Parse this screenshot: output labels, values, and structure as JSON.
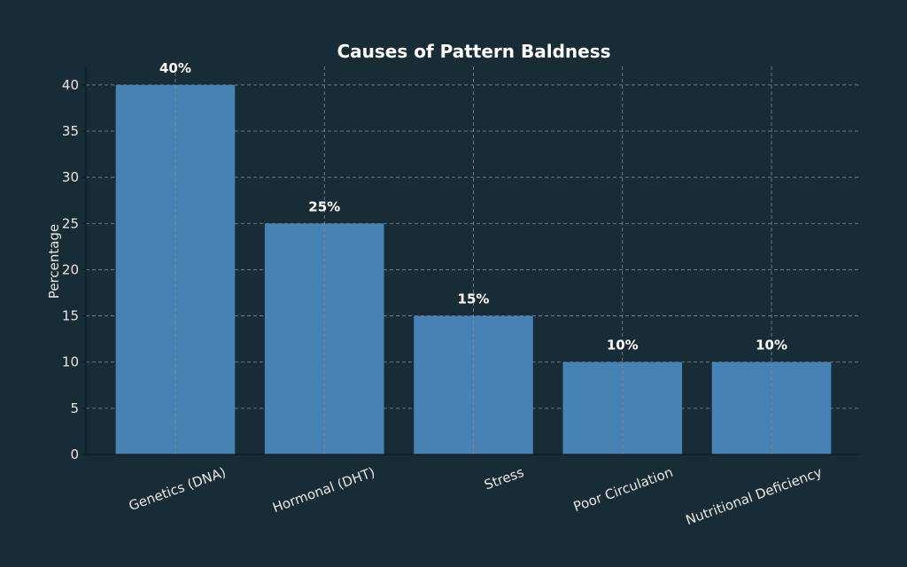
{
  "chart_data": {
    "type": "bar",
    "title": "Causes of Pattern Baldness",
    "xlabel": "",
    "ylabel": "Percentage",
    "categories": [
      "Genetics (DNA)",
      "Hormonal (DHT)",
      "Stress",
      "Poor Circulation",
      "Nutritional Deficiency"
    ],
    "values": [
      40,
      25,
      15,
      10,
      10
    ],
    "data_labels": [
      "40%",
      "25%",
      "15%",
      "10%",
      "10%"
    ],
    "ylim": [
      0,
      42
    ],
    "yticks": [
      0,
      5,
      10,
      15,
      20,
      25,
      30,
      35,
      40
    ],
    "grid": true,
    "bar_color": "#4682b4",
    "background_color": "#182c35"
  }
}
